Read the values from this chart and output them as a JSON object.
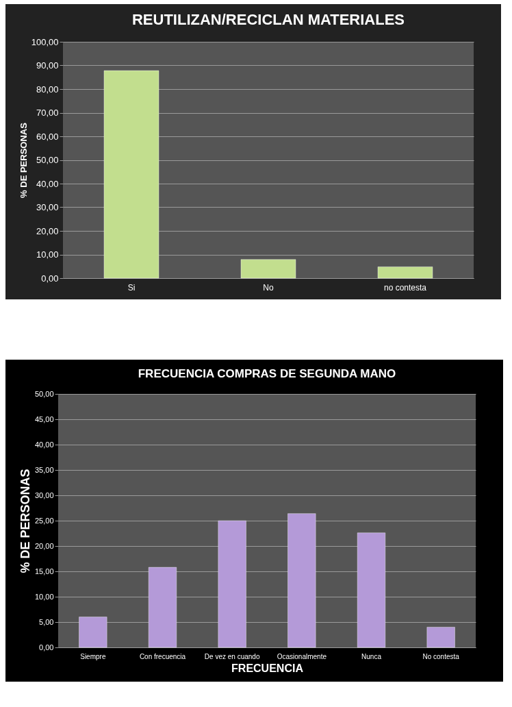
{
  "chart_data": [
    {
      "type": "bar",
      "title": "REUTILIZAN/RECICLAN MATERIALES",
      "ylabel": "% DE PERSONAS",
      "categories": [
        "Si",
        "No",
        "no contesta"
      ],
      "values": [
        87.8,
        7.9,
        4.8
      ],
      "color": "#c2de8e",
      "ylim": [
        0,
        100
      ],
      "yticks": [
        {
          "value": 0,
          "label": "0,00"
        },
        {
          "value": 10,
          "label": "10,00"
        },
        {
          "value": 20,
          "label": "20,00"
        },
        {
          "value": 30,
          "label": "30,00"
        },
        {
          "value": 40,
          "label": "40,00"
        },
        {
          "value": 50,
          "label": "50,00"
        },
        {
          "value": 60,
          "label": "60,00"
        },
        {
          "value": 70,
          "label": "70,00"
        },
        {
          "value": 80,
          "label": "80,00"
        },
        {
          "value": 90,
          "label": "90,00"
        },
        {
          "value": 100,
          "label": "100,00"
        }
      ],
      "grid": "y"
    },
    {
      "type": "bar",
      "title": "FRECUENCIA COMPRAS DE SEGUNDA MANO",
      "xlabel": "FRECUENCIA",
      "ylabel": "% DE PERSONAS",
      "categories": [
        "Siempre",
        "Con frecuencia",
        "De vez en cuando",
        "Ocasionalmente",
        "Nunca",
        "No contesta"
      ],
      "values": [
        6.0,
        15.8,
        25.0,
        26.4,
        22.6,
        4.0
      ],
      "color": "#b49ad8",
      "ylim": [
        0,
        50
      ],
      "yticks": [
        {
          "value": 0,
          "label": "0,00"
        },
        {
          "value": 5,
          "label": "5,00"
        },
        {
          "value": 10,
          "label": "10,00"
        },
        {
          "value": 15,
          "label": "15,00"
        },
        {
          "value": 20,
          "label": "20,00"
        },
        {
          "value": 25,
          "label": "25,00"
        },
        {
          "value": 30,
          "label": "30,00"
        },
        {
          "value": 35,
          "label": "35,00"
        },
        {
          "value": 40,
          "label": "40,00"
        },
        {
          "value": 45,
          "label": "45,00"
        },
        {
          "value": 50,
          "label": "50,00"
        }
      ],
      "grid": "y"
    }
  ]
}
